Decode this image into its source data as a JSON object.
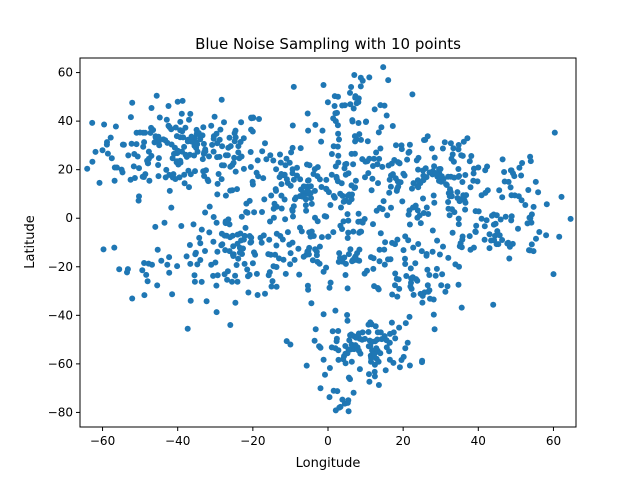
{
  "chart_data": {
    "type": "scatter",
    "title": "Blue Noise Sampling with 10 points",
    "xlabel": "Longitude",
    "ylabel": "Latitude",
    "xlim": [
      -66,
      66
    ],
    "ylim": [
      -86,
      66
    ],
    "xticks": [
      -60,
      -40,
      -20,
      0,
      20,
      40,
      60
    ],
    "yticks": [
      -80,
      -60,
      -40,
      -20,
      0,
      20,
      40,
      60
    ],
    "grid": false,
    "color": "#1f77b4",
    "clusters": [
      {
        "cx": -38,
        "cy": 28,
        "sx": 12,
        "sy": 9,
        "n": 210
      },
      {
        "cx": -25,
        "cy": -15,
        "sx": 12,
        "sy": 9,
        "n": 120
      },
      {
        "cx": -5,
        "cy": 12,
        "sx": 10,
        "sy": 8,
        "n": 110
      },
      {
        "cx": 8,
        "cy": 45,
        "sx": 6,
        "sy": 9,
        "n": 55
      },
      {
        "cx": 28,
        "cy": 15,
        "sx": 16,
        "sy": 10,
        "n": 200
      },
      {
        "cx": 45,
        "cy": -5,
        "sx": 9,
        "sy": 6,
        "n": 60
      },
      {
        "cx": 2,
        "cy": -15,
        "sx": 14,
        "sy": 9,
        "n": 120
      },
      {
        "cx": 28,
        "cy": -30,
        "sx": 7,
        "sy": 6,
        "n": 30
      },
      {
        "cx": 10,
        "cy": -53,
        "sx": 7,
        "sy": 6,
        "n": 110
      },
      {
        "cx": 2,
        "cy": -76,
        "sx": 2,
        "sy": 3,
        "n": 10
      },
      {
        "cx": -50,
        "cy": -20,
        "sx": 4,
        "sy": 5,
        "n": 10
      }
    ],
    "points": [
      [
        60,
        -23
      ],
      [
        -60,
        28
      ],
      [
        -40,
        48
      ],
      [
        7,
        59
      ],
      [
        11,
        58
      ],
      [
        -48,
        -26
      ],
      [
        -26,
        -44
      ],
      [
        -10,
        -52
      ],
      [
        -2,
        -70
      ],
      [
        3,
        -78
      ]
    ]
  }
}
